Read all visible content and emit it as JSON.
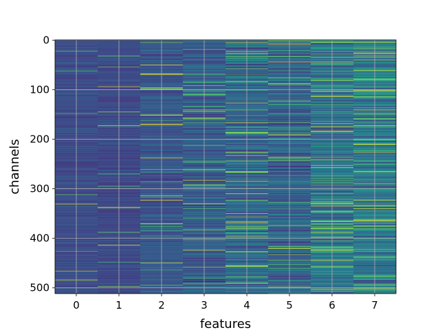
{
  "chart_data": {
    "type": "heatmap",
    "title": "",
    "xlabel": "features",
    "ylabel": "channels",
    "x_ticks": [
      "0",
      "1",
      "2",
      "3",
      "4",
      "5",
      "6",
      "7"
    ],
    "y_ticks": [
      "0",
      "100",
      "200",
      "300",
      "400",
      "500"
    ],
    "n_columns": 8,
    "n_rows": 512,
    "xlim": [
      -0.5,
      7.5
    ],
    "ylim": [
      511.5,
      -0.5
    ],
    "y_axis_inverted": true,
    "grid": true,
    "colormap": "viridis",
    "column_intensity": [
      {
        "feature": 0,
        "mean": 0.26,
        "spread": 0.06
      },
      {
        "feature": 1,
        "mean": 0.25,
        "spread": 0.06
      },
      {
        "feature": 2,
        "mean": 0.3,
        "spread": 0.09
      },
      {
        "feature": 3,
        "mean": 0.33,
        "spread": 0.13
      },
      {
        "feature": 4,
        "mean": 0.38,
        "spread": 0.16
      },
      {
        "feature": 5,
        "mean": 0.36,
        "spread": 0.16
      },
      {
        "feature": 6,
        "mean": 0.42,
        "spread": 0.17
      },
      {
        "feature": 7,
        "mean": 0.45,
        "spread": 0.17
      }
    ]
  }
}
